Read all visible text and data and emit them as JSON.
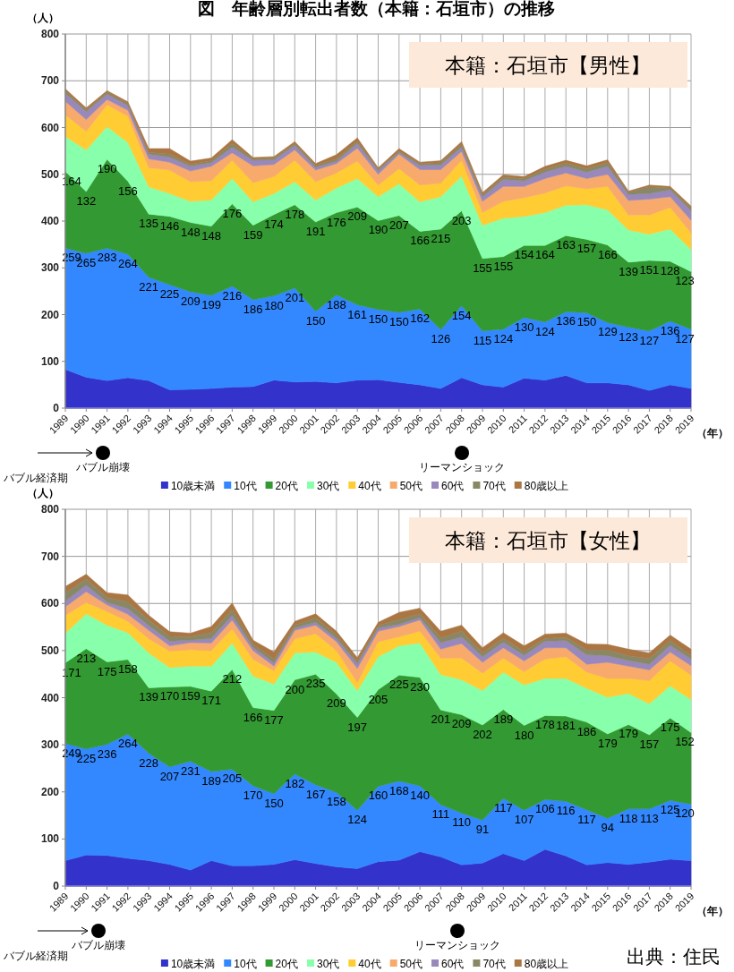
{
  "chart_data": [
    {
      "type": "area",
      "stacked": true,
      "title": "図　年齢層別転出者数（本籍：石垣市）の推移",
      "subtitle": "本籍：石垣市【男性】",
      "ylabel": "（人）",
      "xlabel": "（年）",
      "categories": [
        "1989",
        "1990",
        "1991",
        "1992",
        "1993",
        "1994",
        "1995",
        "1996",
        "1997",
        "1998",
        "1999",
        "2000",
        "2001",
        "2002",
        "2003",
        "2004",
        "2005",
        "2006",
        "2007",
        "2008",
        "2009",
        "2010",
        "2011",
        "2012",
        "2013",
        "2014",
        "2015",
        "2016",
        "2017",
        "2018",
        "2019"
      ],
      "ylim": [
        0,
        800
      ],
      "yticks": [
        0,
        100,
        200,
        300,
        400,
        500,
        600,
        700,
        800
      ],
      "grid": true,
      "legend": "bottom",
      "annotations": [
        "バブル経済期",
        "バブル崩壊",
        "リーマンショック"
      ],
      "series": [
        {
          "name": "10歳未満",
          "color": "#3333cc",
          "values": [
            83,
            66,
            59,
            65,
            59,
            39,
            40,
            42,
            45,
            46,
            60,
            56,
            57,
            54,
            60,
            61,
            55,
            50,
            42,
            65,
            50,
            45,
            64,
            60,
            70,
            54,
            54,
            50,
            38,
            50,
            42
          ]
        },
        {
          "name": "10代",
          "color": "#3388ff",
          "values": [
            259,
            265,
            283,
            264,
            221,
            225,
            209,
            199,
            216,
            186,
            180,
            201,
            150,
            188,
            161,
            150,
            150,
            162,
            126,
            154,
            115,
            124,
            130,
            124,
            136,
            150,
            129,
            123,
            127,
            136,
            127
          ],
          "value_labels": [
            "259",
            "265",
            "283",
            "264",
            "221",
            "225",
            "209",
            "199",
            "216",
            "186",
            "180",
            "201",
            "150",
            "188",
            "161",
            "150",
            "150",
            "162",
            "126",
            "154",
            "115",
            "124",
            "130",
            "124",
            "136",
            "150",
            "129",
            "123",
            "127",
            "136",
            "127"
          ]
        },
        {
          "name": "20代",
          "color": "#339933",
          "values": [
            164,
            132,
            190,
            156,
            135,
            146,
            148,
            148,
            176,
            159,
            174,
            178,
            191,
            176,
            209,
            190,
            207,
            166,
            215,
            203,
            155,
            155,
            154,
            164,
            163,
            157,
            166,
            139,
            151,
            128,
            123
          ],
          "value_labels": [
            "164",
            "132",
            "190",
            "156",
            "135",
            "146",
            "148",
            "148",
            "176",
            "159",
            "174",
            "178",
            "191",
            "176",
            "209",
            "190",
            "207",
            "166",
            "215",
            "203",
            "155",
            "155",
            "154",
            "164",
            "163",
            "157",
            "166",
            "139",
            "151",
            "128",
            "123"
          ]
        },
        {
          "name": "30代",
          "color": "#88ffaa",
          "values": [
            75,
            89,
            70,
            83,
            58,
            49,
            45,
            56,
            54,
            50,
            45,
            49,
            47,
            53,
            61,
            51,
            68,
            63,
            69,
            74,
            71,
            82,
            62,
            70,
            65,
            74,
            75,
            69,
            56,
            69,
            47
          ]
        },
        {
          "name": "40代",
          "color": "#ffcc33",
          "values": [
            46,
            40,
            47,
            56,
            41,
            50,
            42,
            41,
            39,
            41,
            36,
            46,
            39,
            32,
            37,
            25,
            32,
            36,
            29,
            34,
            27,
            36,
            40,
            42,
            41,
            34,
            50,
            32,
            41,
            46,
            36
          ]
        },
        {
          "name": "50代",
          "color": "#f7aa6b",
          "values": [
            29,
            25,
            11,
            13,
            19,
            17,
            23,
            31,
            16,
            36,
            26,
            22,
            25,
            20,
            28,
            23,
            31,
            33,
            29,
            19,
            24,
            32,
            24,
            31,
            28,
            22,
            26,
            31,
            34,
            23,
            27
          ]
        },
        {
          "name": "60代",
          "color": "#9988bb",
          "values": [
            17,
            17,
            12,
            10,
            10,
            11,
            10,
            8,
            12,
            12,
            10,
            10,
            6,
            5,
            10,
            8,
            4,
            9,
            10,
            9,
            10,
            15,
            12,
            14,
            14,
            14,
            17,
            13,
            12,
            15,
            20
          ]
        },
        {
          "name": "70代",
          "color": "#888866",
          "values": [
            5,
            4,
            4,
            4,
            4,
            6,
            4,
            4,
            8,
            3,
            4,
            4,
            4,
            5,
            5,
            3,
            3,
            4,
            5,
            6,
            5,
            5,
            5,
            6,
            7,
            7,
            8,
            5,
            14,
            4,
            6
          ]
        },
        {
          "name": "80歳以上",
          "color": "#aa7744",
          "values": [
            5,
            4,
            3,
            4,
            8,
            12,
            7,
            6,
            8,
            3,
            3,
            4,
            4,
            9,
            7,
            3,
            5,
            3,
            4,
            6,
            4,
            5,
            4,
            6,
            6,
            6,
            6,
            2,
            4,
            3,
            4
          ]
        }
      ]
    },
    {
      "type": "area",
      "stacked": true,
      "subtitle": "本籍：石垣市【女性】",
      "ylabel": "（人）",
      "xlabel": "（年）",
      "categories": [
        "1989",
        "1990",
        "1991",
        "1992",
        "1993",
        "1994",
        "1995",
        "1996",
        "1997",
        "1998",
        "1999",
        "2000",
        "2001",
        "2002",
        "2003",
        "2004",
        "2005",
        "2006",
        "2007",
        "2008",
        "2009",
        "2010",
        "2011",
        "2012",
        "2013",
        "2014",
        "2015",
        "2016",
        "2017",
        "2018",
        "2019"
      ],
      "ylim": [
        0,
        800
      ],
      "yticks": [
        0,
        100,
        200,
        300,
        400,
        500,
        600,
        700,
        800
      ],
      "grid": true,
      "legend": "bottom",
      "annotations": [
        "バブル経済期",
        "バブル崩壊",
        "リーマンショック",
        "出典：住民"
      ],
      "series": [
        {
          "name": "10歳未満",
          "color": "#3333cc",
          "values": [
            54,
            66,
            65,
            59,
            54,
            46,
            34,
            54,
            43,
            43,
            46,
            56,
            48,
            41,
            37,
            52,
            55,
            73,
            62,
            45,
            49,
            69,
            54,
            78,
            64,
            45,
            50,
            46,
            51,
            57,
            54
          ]
        },
        {
          "name": "10代",
          "color": "#3388ff",
          "values": [
            249,
            225,
            236,
            264,
            228,
            207,
            231,
            189,
            205,
            170,
            150,
            182,
            167,
            158,
            124,
            160,
            168,
            140,
            111,
            110,
            91,
            117,
            107,
            106,
            116,
            117,
            94,
            118,
            113,
            125,
            120
          ],
          "value_labels": [
            "249",
            "225",
            "236",
            "264",
            "228",
            "207",
            "231",
            "189",
            "205",
            "170",
            "150",
            "182",
            "167",
            "158",
            "124",
            "160",
            "168",
            "140",
            "111",
            "110",
            "91",
            "117",
            "107",
            "106",
            "116",
            "117",
            "94",
            "118",
            "113",
            "125",
            "120"
          ]
        },
        {
          "name": "20代",
          "color": "#339933",
          "values": [
            171,
            213,
            175,
            158,
            139,
            170,
            159,
            171,
            212,
            166,
            177,
            200,
            235,
            209,
            197,
            205,
            225,
            230,
            201,
            209,
            202,
            189,
            180,
            178,
            181,
            186,
            179,
            179,
            157,
            175,
            152
          ],
          "value_labels": [
            "171",
            "213",
            "175",
            "158",
            "139",
            "170",
            "159",
            "171",
            "212",
            "166",
            "177",
            "200",
            "235",
            "209",
            "197",
            "205",
            "225",
            "230",
            "201",
            "209",
            "202",
            "189",
            "180",
            "178",
            "181",
            "186",
            "179",
            "179",
            "157",
            "175",
            "152"
          ]
        },
        {
          "name": "30代",
          "color": "#88ffaa",
          "values": [
            63,
            74,
            78,
            57,
            74,
            41,
            43,
            53,
            56,
            67,
            56,
            57,
            47,
            67,
            57,
            70,
            62,
            73,
            75,
            74,
            73,
            79,
            86,
            79,
            80,
            72,
            78,
            66,
            66,
            68,
            70
          ]
        },
        {
          "name": "40代",
          "color": "#ffcc33",
          "values": [
            38,
            24,
            29,
            24,
            30,
            35,
            35,
            33,
            30,
            35,
            28,
            30,
            39,
            25,
            17,
            32,
            19,
            25,
            35,
            46,
            37,
            30,
            28,
            41,
            46,
            34,
            40,
            32,
            49,
            53,
            52
          ]
        },
        {
          "name": "50代",
          "color": "#f7aa6b",
          "values": [
            18,
            23,
            14,
            15,
            18,
            11,
            15,
            16,
            19,
            19,
            10,
            18,
            18,
            19,
            30,
            22,
            22,
            24,
            19,
            31,
            23,
            22,
            23,
            24,
            19,
            17,
            34,
            26,
            23,
            19,
            20
          ]
        },
        {
          "name": "60代",
          "color": "#9988bb",
          "values": [
            12,
            14,
            6,
            12,
            10,
            10,
            5,
            10,
            10,
            7,
            7,
            5,
            6,
            7,
            10,
            7,
            5,
            5,
            14,
            14,
            12,
            12,
            12,
            14,
            15,
            20,
            14,
            12,
            12,
            14,
            14
          ]
        },
        {
          "name": "70代",
          "color": "#888866",
          "values": [
            17,
            13,
            10,
            14,
            12,
            10,
            7,
            12,
            12,
            6,
            8,
            6,
            9,
            7,
            5,
            5,
            10,
            8,
            10,
            12,
            8,
            8,
            8,
            6,
            7,
            10,
            12,
            10,
            12,
            10,
            8
          ]
        },
        {
          "name": "80歳以上",
          "color": "#aa7744",
          "values": [
            14,
            10,
            10,
            15,
            10,
            10,
            8,
            13,
            14,
            9,
            15,
            8,
            9,
            8,
            8,
            7,
            15,
            12,
            14,
            13,
            11,
            12,
            12,
            9,
            9,
            13,
            12,
            14,
            12,
            12,
            13
          ]
        }
      ]
    }
  ]
}
